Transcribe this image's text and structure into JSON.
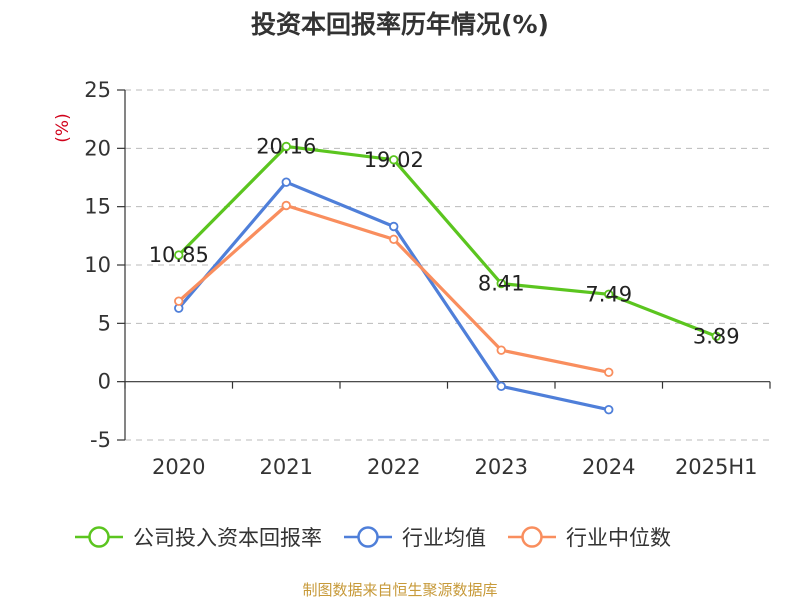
{
  "chart_data": {
    "type": "line",
    "title": "投资本回报率历年情况(%)",
    "ylabel": "(%)",
    "xlabel": "",
    "categories": [
      "2020",
      "2021",
      "2022",
      "2023",
      "2024",
      "2025H1"
    ],
    "ylim": [
      -5,
      25
    ],
    "yticks": [
      25,
      20,
      15,
      10,
      5,
      0,
      -5
    ],
    "grid": true,
    "legend_position": "bottom",
    "series": [
      {
        "name": "公司投入资本回报率",
        "color": "#5bc51f",
        "values": [
          10.85,
          20.16,
          19.02,
          8.41,
          7.49,
          3.89
        ],
        "labels": true
      },
      {
        "name": "行业均值",
        "color": "#4f7fd9",
        "values": [
          6.3,
          17.1,
          13.3,
          -0.4,
          -2.4,
          null
        ],
        "labels": false
      },
      {
        "name": "行业中位数",
        "color": "#f98e5e",
        "values": [
          6.9,
          15.1,
          12.2,
          2.7,
          0.8,
          null
        ],
        "labels": false
      }
    ],
    "source": "制图数据来自恒生聚源数据库",
    "source_color": "#c79a3a",
    "ylabel_color": "#d0021b"
  }
}
